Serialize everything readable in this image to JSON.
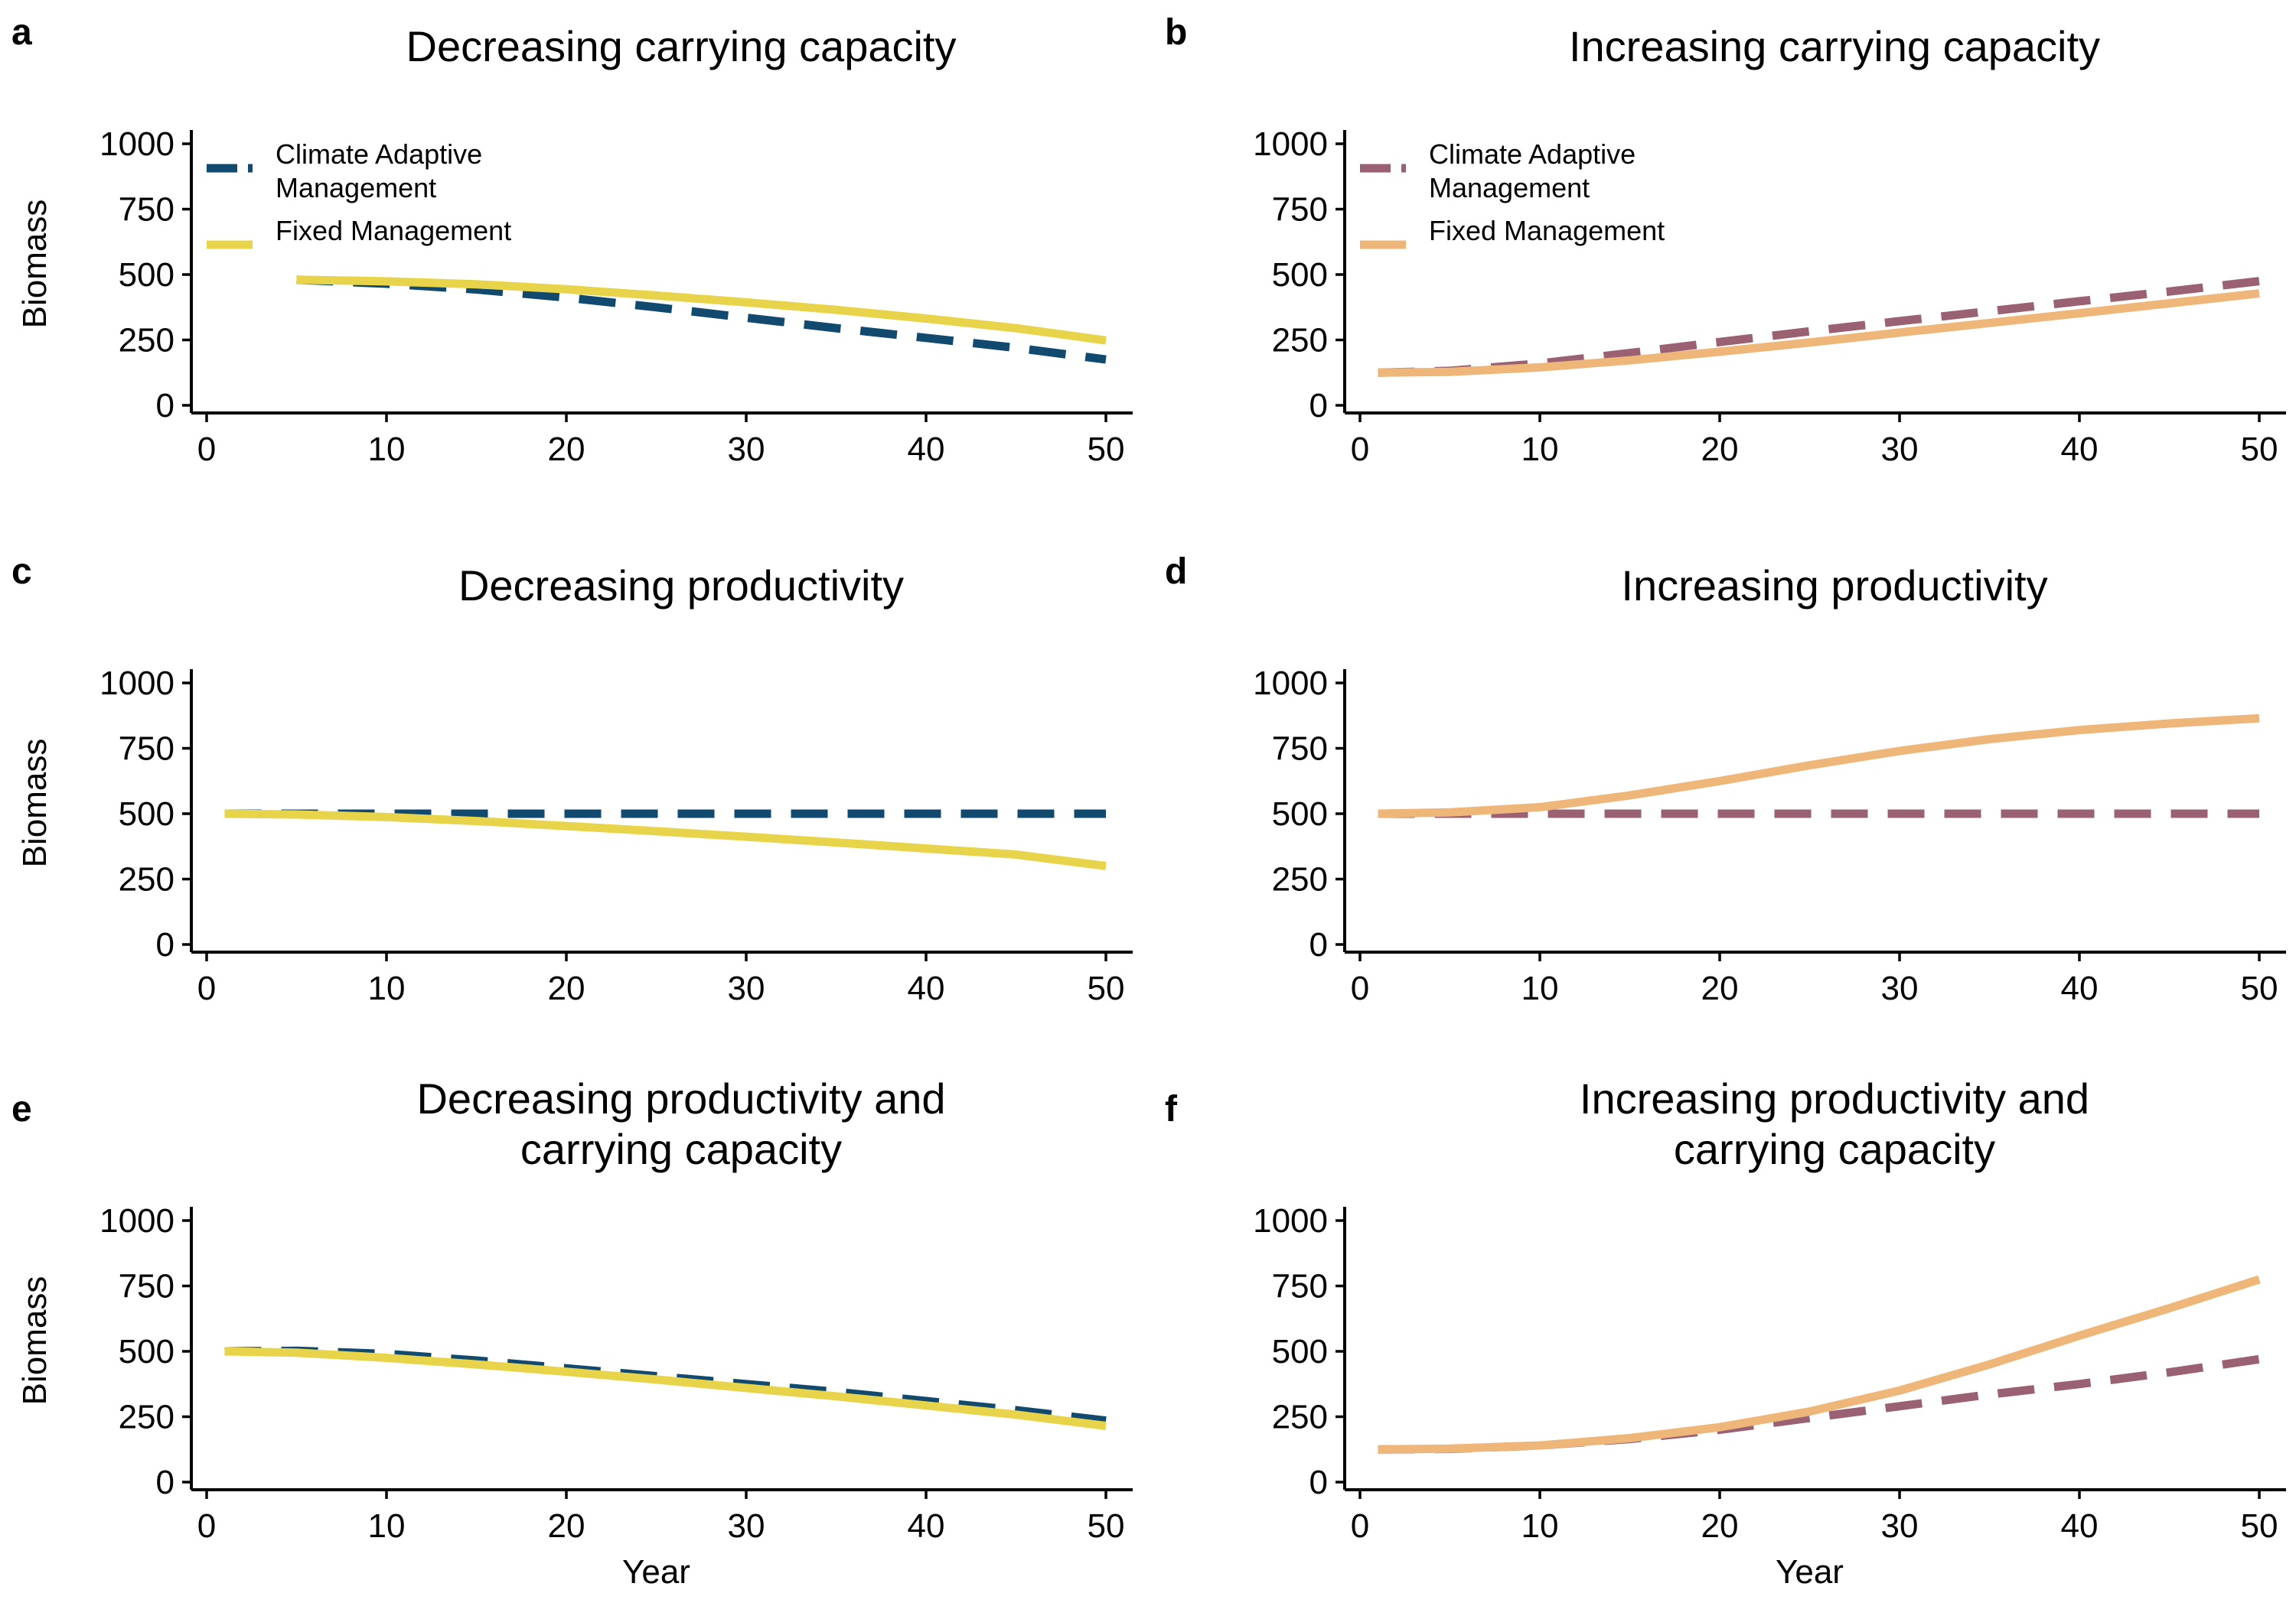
{
  "colors": {
    "adaptive_decreasing": "#114A6E",
    "fixed_decreasing": "#E8D44A",
    "adaptive_increasing": "#9A6173",
    "fixed_increasing": "#EEB679"
  },
  "shared_axes": {
    "ylabel": "Biomass",
    "xlabel": "Year",
    "xlim": [
      0,
      50
    ],
    "ylim": [
      0,
      1000
    ],
    "xticks": [
      0,
      10,
      20,
      30,
      40,
      50
    ],
    "yticks": [
      0,
      250,
      500,
      750,
      1000
    ]
  },
  "chart_data": [
    {
      "type": "line",
      "letter": "a",
      "title_lines": [
        "Decreasing carrying capacity"
      ],
      "xlabel": "",
      "ylabel": "Biomass",
      "xlim": [
        0,
        50
      ],
      "ylim": [
        0,
        1000
      ],
      "grid": false,
      "legend": {
        "placement": "top-left",
        "entries": [
          {
            "lines": [
              "Climate Adaptive",
              "Management"
            ],
            "style": "dashed",
            "color_key": "adaptive_decreasing"
          },
          {
            "lines": [
              "Fixed Management"
            ],
            "style": "solid",
            "color_key": "fixed_decreasing"
          }
        ]
      },
      "series": [
        {
          "name": "Climate Adaptive Management",
          "style": "dashed",
          "color_key": "adaptive_decreasing",
          "x": [
            5,
            10,
            15,
            20,
            25,
            30,
            35,
            40,
            45,
            50
          ],
          "y": [
            480,
            465,
            443,
            412,
            375,
            335,
            295,
            258,
            220,
            175
          ]
        },
        {
          "name": "Fixed Management",
          "style": "solid",
          "color_key": "fixed_decreasing",
          "x": [
            5,
            10,
            15,
            20,
            25,
            30,
            35,
            40,
            45,
            50
          ],
          "y": [
            480,
            474,
            463,
            444,
            420,
            394,
            365,
            332,
            295,
            248
          ]
        }
      ]
    },
    {
      "type": "line",
      "letter": "b",
      "title_lines": [
        "Increasing carrying capacity"
      ],
      "xlabel": "",
      "ylabel": "",
      "xlim": [
        0,
        50
      ],
      "ylim": [
        0,
        1000
      ],
      "grid": false,
      "legend": {
        "placement": "top-left",
        "entries": [
          {
            "lines": [
              "Climate Adaptive",
              "Management"
            ],
            "style": "dashed",
            "color_key": "adaptive_increasing"
          },
          {
            "lines": [
              "Fixed Management"
            ],
            "style": "solid",
            "color_key": "fixed_increasing"
          }
        ]
      },
      "series": [
        {
          "name": "Climate Adaptive Management",
          "style": "dashed",
          "color_key": "adaptive_increasing",
          "x": [
            1,
            5,
            10,
            15,
            20,
            25,
            30,
            35,
            40,
            45,
            50
          ],
          "y": [
            125,
            132,
            160,
            200,
            242,
            283,
            322,
            360,
            398,
            435,
            475
          ]
        },
        {
          "name": "Fixed Management",
          "style": "solid",
          "color_key": "fixed_increasing",
          "x": [
            1,
            5,
            10,
            15,
            20,
            25,
            30,
            35,
            40,
            45,
            50
          ],
          "y": [
            125,
            128,
            145,
            172,
            205,
            240,
            278,
            315,
            352,
            390,
            428
          ]
        }
      ]
    },
    {
      "type": "line",
      "letter": "c",
      "title_lines": [
        "Decreasing productivity"
      ],
      "xlabel": "",
      "ylabel": "Biomass",
      "xlim": [
        0,
        50
      ],
      "ylim": [
        0,
        1000
      ],
      "grid": false,
      "series": [
        {
          "name": "Climate Adaptive Management",
          "style": "dashed",
          "color_key": "adaptive_decreasing",
          "x": [
            1,
            10,
            20,
            30,
            40,
            50
          ],
          "y": [
            500,
            500,
            500,
            500,
            500,
            500
          ]
        },
        {
          "name": "Fixed Management",
          "style": "solid",
          "color_key": "fixed_decreasing",
          "x": [
            1,
            5,
            10,
            15,
            20,
            25,
            30,
            35,
            40,
            45,
            50
          ],
          "y": [
            500,
            497,
            487,
            472,
            453,
            433,
            412,
            390,
            367,
            344,
            300
          ]
        }
      ]
    },
    {
      "type": "line",
      "letter": "d",
      "title_lines": [
        "Increasing productivity"
      ],
      "xlabel": "",
      "ylabel": "",
      "xlim": [
        0,
        50
      ],
      "ylim": [
        0,
        1000
      ],
      "grid": false,
      "series": [
        {
          "name": "Climate Adaptive Management",
          "style": "dashed",
          "color_key": "adaptive_increasing",
          "x": [
            1,
            10,
            20,
            30,
            40,
            50
          ],
          "y": [
            500,
            500,
            500,
            500,
            500,
            500
          ]
        },
        {
          "name": "Fixed Management",
          "style": "solid",
          "color_key": "fixed_increasing",
          "x": [
            1,
            5,
            10,
            15,
            20,
            25,
            30,
            35,
            40,
            45,
            50
          ],
          "y": [
            500,
            505,
            525,
            570,
            625,
            685,
            740,
            785,
            820,
            845,
            865
          ]
        }
      ]
    },
    {
      "type": "line",
      "letter": "e",
      "title_lines": [
        "Decreasing productivity and",
        "carrying capacity"
      ],
      "xlabel": "Year",
      "ylabel": "Biomass",
      "xlim": [
        0,
        50
      ],
      "ylim": [
        0,
        1000
      ],
      "grid": false,
      "series": [
        {
          "name": "Climate Adaptive Management",
          "style": "dashed",
          "color_key": "adaptive_decreasing",
          "x": [
            1,
            5,
            10,
            15,
            20,
            25,
            30,
            35,
            40,
            45,
            50
          ],
          "y": [
            500,
            502,
            490,
            465,
            435,
            405,
            375,
            345,
            310,
            275,
            235
          ]
        },
        {
          "name": "Fixed Management",
          "style": "solid",
          "color_key": "fixed_decreasing",
          "x": [
            1,
            5,
            10,
            15,
            20,
            25,
            30,
            35,
            40,
            45,
            50
          ],
          "y": [
            500,
            495,
            475,
            450,
            422,
            392,
            360,
            328,
            293,
            258,
            215
          ]
        }
      ]
    },
    {
      "type": "line",
      "letter": "f",
      "title_lines": [
        "Increasing productivity and",
        "carrying capacity"
      ],
      "xlabel": "Year",
      "ylabel": "",
      "xlim": [
        0,
        50
      ],
      "ylim": [
        0,
        1000
      ],
      "grid": false,
      "series": [
        {
          "name": "Climate Adaptive Management",
          "style": "dashed",
          "color_key": "adaptive_increasing",
          "x": [
            1,
            5,
            10,
            15,
            20,
            25,
            30,
            35,
            40,
            45,
            50
          ],
          "y": [
            125,
            127,
            140,
            165,
            200,
            245,
            290,
            335,
            375,
            420,
            470
          ]
        },
        {
          "name": "Fixed Management",
          "style": "solid",
          "color_key": "fixed_increasing",
          "x": [
            1,
            5,
            10,
            15,
            20,
            25,
            30,
            35,
            40,
            45,
            50
          ],
          "y": [
            125,
            128,
            140,
            168,
            210,
            270,
            350,
            450,
            560,
            665,
            775
          ]
        }
      ]
    }
  ]
}
